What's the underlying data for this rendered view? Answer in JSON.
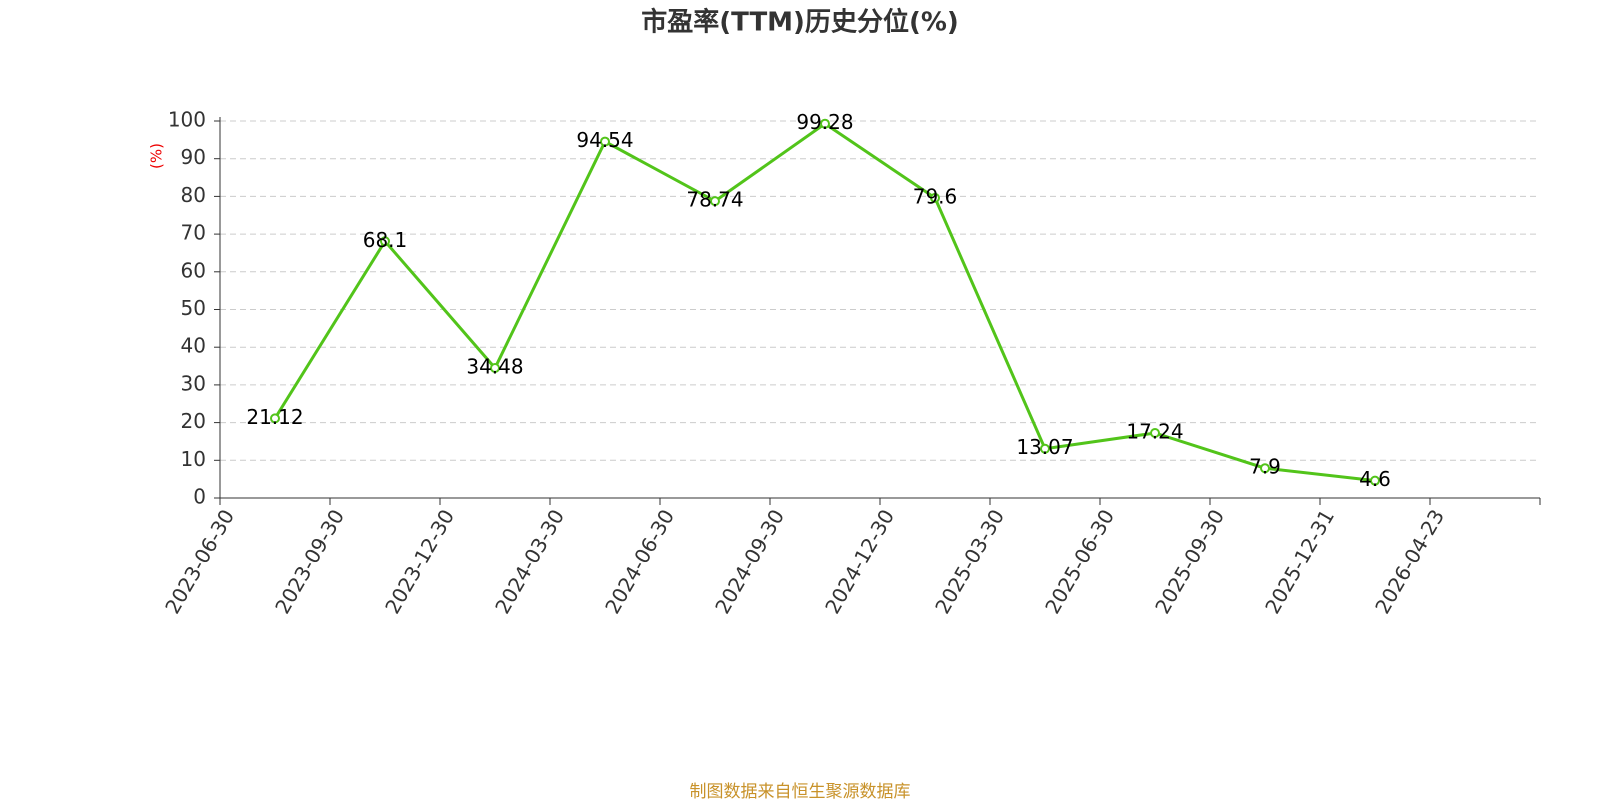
{
  "chart_data": {
    "type": "line",
    "title": "市盈率(TTM)历史分位(%)",
    "y_label": "(%)",
    "categories": [
      "2023-06-30",
      "2023-09-30",
      "2023-12-30",
      "2024-03-30",
      "2024-06-30",
      "2024-09-30",
      "2024-12-30",
      "2025-03-30",
      "2025-06-30",
      "2025-09-30",
      "2025-12-31",
      "2026-04-23"
    ],
    "values": [
      21.12,
      68.1,
      34.48,
      94.54,
      78.74,
      99.28,
      79.6,
      13.07,
      17.24,
      7.9,
      4.6,
      null
    ],
    "color": "#52c41a",
    "ylim": [
      0,
      100
    ],
    "yticks": [
      0,
      10,
      20,
      30,
      40,
      50,
      60,
      70,
      80,
      90,
      100
    ],
    "grid": true
  },
  "footer": "制图数据来自恒生聚源数据库"
}
